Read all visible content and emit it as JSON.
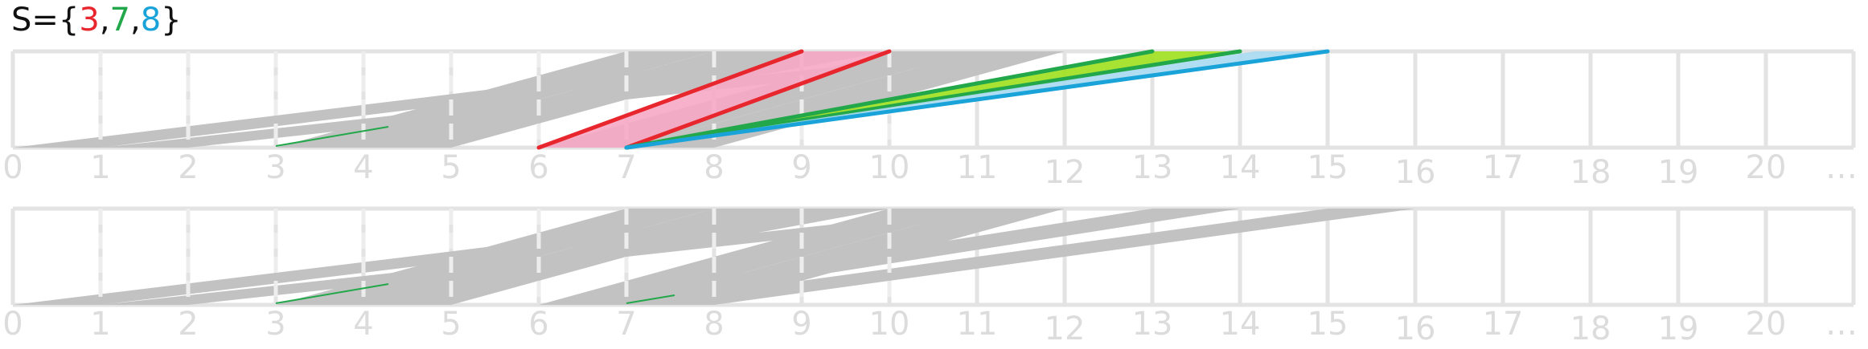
{
  "set_label": {
    "prefix": "S=",
    "open": "{",
    "close": "}",
    "sep": ",",
    "elements": [
      {
        "value": "3",
        "color": "#e8262e"
      },
      {
        "value": "7",
        "color": "#22a84a"
      },
      {
        "value": "8",
        "color": "#1aa3d9"
      }
    ]
  },
  "axis_ticks": [
    "0",
    "1",
    "2",
    "3",
    "4",
    "5",
    "6",
    "7",
    "8",
    "9",
    "10",
    "11",
    "12",
    "13",
    "14",
    "15",
    "16",
    "17",
    "18",
    "19",
    "20",
    "…"
  ],
  "colors": {
    "grid": "#e3e3e3",
    "gray_fill": "#c2c2c2",
    "red_line": "#e8262e",
    "pink_fill": "#f7a8c4",
    "green_line": "#22a84a",
    "lime_fill": "#9fe01e",
    "blue_line": "#1aa3d9",
    "lightblue_fill": "#a7d9f0",
    "tick_text": "#dcdcdc"
  },
  "panels": [
    {
      "name": "top",
      "gray_bands": [
        [
          0,
          9
        ],
        [
          1,
          11
        ],
        [
          3,
          7
        ],
        [
          3,
          9
        ],
        [
          4,
          8
        ],
        [
          6,
          10
        ],
        [
          7,
          11
        ]
      ],
      "highlights": [
        {
          "from": 6,
          "to": 10,
          "fill": "pink_fill",
          "stroke": "red_line",
          "edges": [
            [
              6,
              9
            ],
            [
              7,
              10
            ]
          ]
        },
        {
          "from": 7,
          "to": 14,
          "fill": "lime_fill",
          "stroke": "green_line",
          "edges": [
            [
              7,
              13
            ],
            [
              7,
              14
            ]
          ]
        },
        {
          "from": 7,
          "to": 15,
          "fill": "lightblue_fill",
          "stroke": "blue_line",
          "edges": [
            [
              7,
              15
            ]
          ]
        }
      ]
    },
    {
      "name": "bottom",
      "gray_bands": [
        [
          0,
          9
        ],
        [
          1,
          11
        ],
        [
          3,
          7
        ],
        [
          3,
          9
        ],
        [
          4,
          8
        ],
        [
          6,
          10
        ],
        [
          7,
          11
        ],
        [
          6,
          13
        ],
        [
          7,
          15
        ]
      ],
      "highlights": []
    }
  ]
}
